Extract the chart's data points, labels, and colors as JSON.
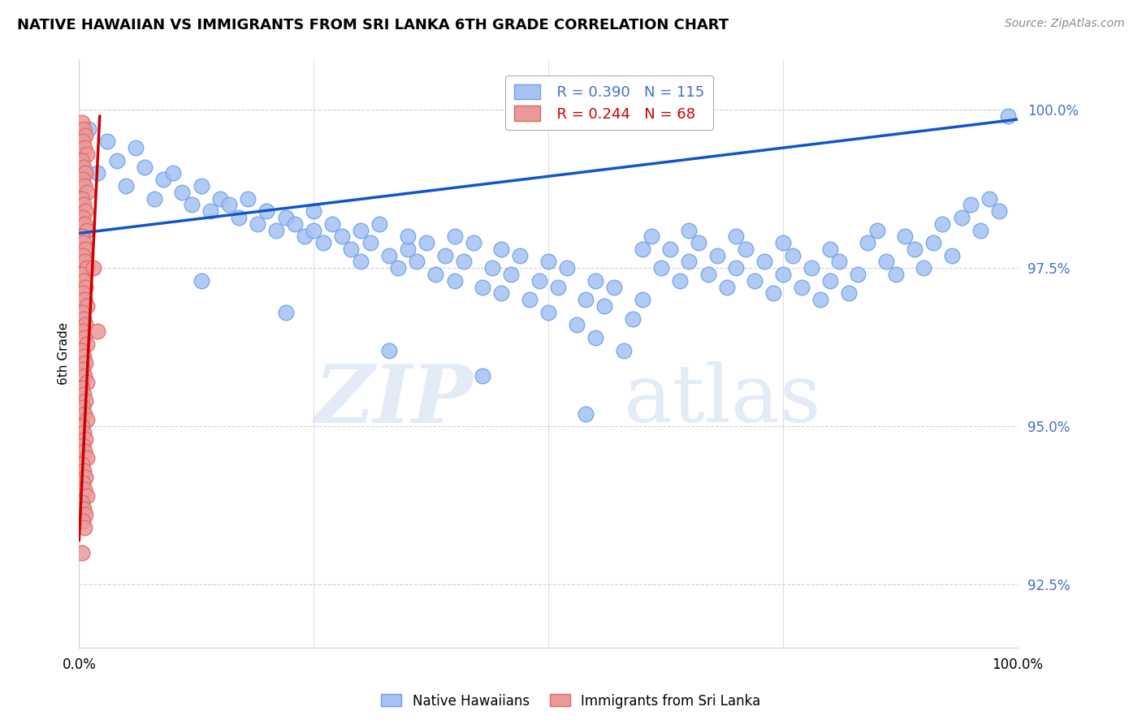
{
  "title": "NATIVE HAWAIIAN VS IMMIGRANTS FROM SRI LANKA 6TH GRADE CORRELATION CHART",
  "source": "Source: ZipAtlas.com",
  "ylabel": "6th Grade",
  "yticks": [
    92.5,
    95.0,
    97.5,
    100.0
  ],
  "xlim": [
    0.0,
    1.0
  ],
  "ylim": [
    91.5,
    100.8
  ],
  "legend_blue_label": "Native Hawaiians",
  "legend_pink_label": "Immigrants from Sri Lanka",
  "R_blue": 0.39,
  "N_blue": 115,
  "R_pink": 0.244,
  "N_pink": 68,
  "blue_color": "#a4c2f4",
  "blue_edge_color": "#6d9eeb",
  "pink_color": "#ea9999",
  "pink_edge_color": "#e06666",
  "trendline_blue_color": "#1155cc",
  "trendline_pink_color": "#cc0000",
  "blue_scatter": [
    [
      0.01,
      99.7
    ],
    [
      0.03,
      99.5
    ],
    [
      0.04,
      99.2
    ],
    [
      0.02,
      99.0
    ],
    [
      0.06,
      99.4
    ],
    [
      0.07,
      99.1
    ],
    [
      0.05,
      98.8
    ],
    [
      0.09,
      98.9
    ],
    [
      0.1,
      99.0
    ],
    [
      0.08,
      98.6
    ],
    [
      0.11,
      98.7
    ],
    [
      0.12,
      98.5
    ],
    [
      0.13,
      98.8
    ],
    [
      0.15,
      98.6
    ],
    [
      0.14,
      98.4
    ],
    [
      0.16,
      98.5
    ],
    [
      0.17,
      98.3
    ],
    [
      0.18,
      98.6
    ],
    [
      0.19,
      98.2
    ],
    [
      0.2,
      98.4
    ],
    [
      0.21,
      98.1
    ],
    [
      0.22,
      98.3
    ],
    [
      0.23,
      98.2
    ],
    [
      0.24,
      98.0
    ],
    [
      0.25,
      98.4
    ],
    [
      0.25,
      98.1
    ],
    [
      0.26,
      97.9
    ],
    [
      0.27,
      98.2
    ],
    [
      0.28,
      98.0
    ],
    [
      0.29,
      97.8
    ],
    [
      0.3,
      98.1
    ],
    [
      0.3,
      97.6
    ],
    [
      0.31,
      97.9
    ],
    [
      0.32,
      98.2
    ],
    [
      0.33,
      97.7
    ],
    [
      0.34,
      97.5
    ],
    [
      0.35,
      97.8
    ],
    [
      0.35,
      98.0
    ],
    [
      0.36,
      97.6
    ],
    [
      0.37,
      97.9
    ],
    [
      0.38,
      97.4
    ],
    [
      0.39,
      97.7
    ],
    [
      0.4,
      98.0
    ],
    [
      0.4,
      97.3
    ],
    [
      0.41,
      97.6
    ],
    [
      0.42,
      97.9
    ],
    [
      0.43,
      97.2
    ],
    [
      0.44,
      97.5
    ],
    [
      0.45,
      97.8
    ],
    [
      0.45,
      97.1
    ],
    [
      0.46,
      97.4
    ],
    [
      0.47,
      97.7
    ],
    [
      0.48,
      97.0
    ],
    [
      0.49,
      97.3
    ],
    [
      0.5,
      97.6
    ],
    [
      0.5,
      96.8
    ],
    [
      0.51,
      97.2
    ],
    [
      0.52,
      97.5
    ],
    [
      0.53,
      96.6
    ],
    [
      0.54,
      97.0
    ],
    [
      0.55,
      97.3
    ],
    [
      0.55,
      96.4
    ],
    [
      0.56,
      96.9
    ],
    [
      0.57,
      97.2
    ],
    [
      0.58,
      96.2
    ],
    [
      0.59,
      96.7
    ],
    [
      0.6,
      97.0
    ],
    [
      0.6,
      97.8
    ],
    [
      0.61,
      98.0
    ],
    [
      0.62,
      97.5
    ],
    [
      0.63,
      97.8
    ],
    [
      0.64,
      97.3
    ],
    [
      0.65,
      97.6
    ],
    [
      0.65,
      98.1
    ],
    [
      0.66,
      97.9
    ],
    [
      0.67,
      97.4
    ],
    [
      0.68,
      97.7
    ],
    [
      0.69,
      97.2
    ],
    [
      0.7,
      97.5
    ],
    [
      0.7,
      98.0
    ],
    [
      0.71,
      97.8
    ],
    [
      0.72,
      97.3
    ],
    [
      0.73,
      97.6
    ],
    [
      0.74,
      97.1
    ],
    [
      0.75,
      97.4
    ],
    [
      0.75,
      97.9
    ],
    [
      0.76,
      97.7
    ],
    [
      0.77,
      97.2
    ],
    [
      0.78,
      97.5
    ],
    [
      0.79,
      97.0
    ],
    [
      0.8,
      97.3
    ],
    [
      0.8,
      97.8
    ],
    [
      0.81,
      97.6
    ],
    [
      0.82,
      97.1
    ],
    [
      0.83,
      97.4
    ],
    [
      0.84,
      97.9
    ],
    [
      0.85,
      98.1
    ],
    [
      0.86,
      97.6
    ],
    [
      0.87,
      97.4
    ],
    [
      0.88,
      98.0
    ],
    [
      0.89,
      97.8
    ],
    [
      0.9,
      97.5
    ],
    [
      0.91,
      97.9
    ],
    [
      0.92,
      98.2
    ],
    [
      0.93,
      97.7
    ],
    [
      0.94,
      98.3
    ],
    [
      0.95,
      98.5
    ],
    [
      0.96,
      98.1
    ],
    [
      0.97,
      98.6
    ],
    [
      0.98,
      98.4
    ],
    [
      0.99,
      99.9
    ],
    [
      0.13,
      97.3
    ],
    [
      0.22,
      96.8
    ],
    [
      0.33,
      96.2
    ],
    [
      0.43,
      95.8
    ],
    [
      0.54,
      95.2
    ]
  ],
  "pink_scatter": [
    [
      0.003,
      99.8
    ],
    [
      0.005,
      99.7
    ],
    [
      0.007,
      99.6
    ],
    [
      0.004,
      99.5
    ],
    [
      0.006,
      99.4
    ],
    [
      0.008,
      99.3
    ],
    [
      0.003,
      99.2
    ],
    [
      0.005,
      99.1
    ],
    [
      0.007,
      99.0
    ],
    [
      0.004,
      98.9
    ],
    [
      0.006,
      98.8
    ],
    [
      0.008,
      98.7
    ],
    [
      0.003,
      98.6
    ],
    [
      0.005,
      98.5
    ],
    [
      0.007,
      98.4
    ],
    [
      0.004,
      98.3
    ],
    [
      0.006,
      98.2
    ],
    [
      0.008,
      98.1
    ],
    [
      0.003,
      98.0
    ],
    [
      0.005,
      97.9
    ],
    [
      0.007,
      97.8
    ],
    [
      0.004,
      97.7
    ],
    [
      0.006,
      97.6
    ],
    [
      0.008,
      97.5
    ],
    [
      0.003,
      97.4
    ],
    [
      0.005,
      97.3
    ],
    [
      0.007,
      97.2
    ],
    [
      0.004,
      97.1
    ],
    [
      0.006,
      97.0
    ],
    [
      0.008,
      96.9
    ],
    [
      0.003,
      96.8
    ],
    [
      0.005,
      96.7
    ],
    [
      0.007,
      96.6
    ],
    [
      0.004,
      96.5
    ],
    [
      0.006,
      96.4
    ],
    [
      0.008,
      96.3
    ],
    [
      0.003,
      96.2
    ],
    [
      0.005,
      96.1
    ],
    [
      0.007,
      96.0
    ],
    [
      0.004,
      95.9
    ],
    [
      0.006,
      95.8
    ],
    [
      0.008,
      95.7
    ],
    [
      0.003,
      95.6
    ],
    [
      0.005,
      95.5
    ],
    [
      0.007,
      95.4
    ],
    [
      0.004,
      95.3
    ],
    [
      0.006,
      95.2
    ],
    [
      0.008,
      95.1
    ],
    [
      0.003,
      95.0
    ],
    [
      0.005,
      94.9
    ],
    [
      0.007,
      94.8
    ],
    [
      0.004,
      94.7
    ],
    [
      0.006,
      94.6
    ],
    [
      0.008,
      94.5
    ],
    [
      0.003,
      94.4
    ],
    [
      0.005,
      94.3
    ],
    [
      0.007,
      94.2
    ],
    [
      0.004,
      94.1
    ],
    [
      0.006,
      94.0
    ],
    [
      0.008,
      93.9
    ],
    [
      0.003,
      93.8
    ],
    [
      0.005,
      93.7
    ],
    [
      0.007,
      93.6
    ],
    [
      0.004,
      93.5
    ],
    [
      0.006,
      93.4
    ],
    [
      0.015,
      97.5
    ],
    [
      0.02,
      96.5
    ],
    [
      0.003,
      93.0
    ]
  ],
  "blue_trendline_x": [
    0.0,
    1.0
  ],
  "blue_trendline_y": [
    98.05,
    99.85
  ],
  "pink_trendline_x": [
    0.0,
    0.022
  ],
  "pink_trendline_y": [
    93.2,
    99.9
  ],
  "watermark_zip": "ZIP",
  "watermark_atlas": "atlas",
  "grid_color": "#d0d0d0",
  "legend_box_color": "#4472c4",
  "ytick_color": "#4472c4"
}
